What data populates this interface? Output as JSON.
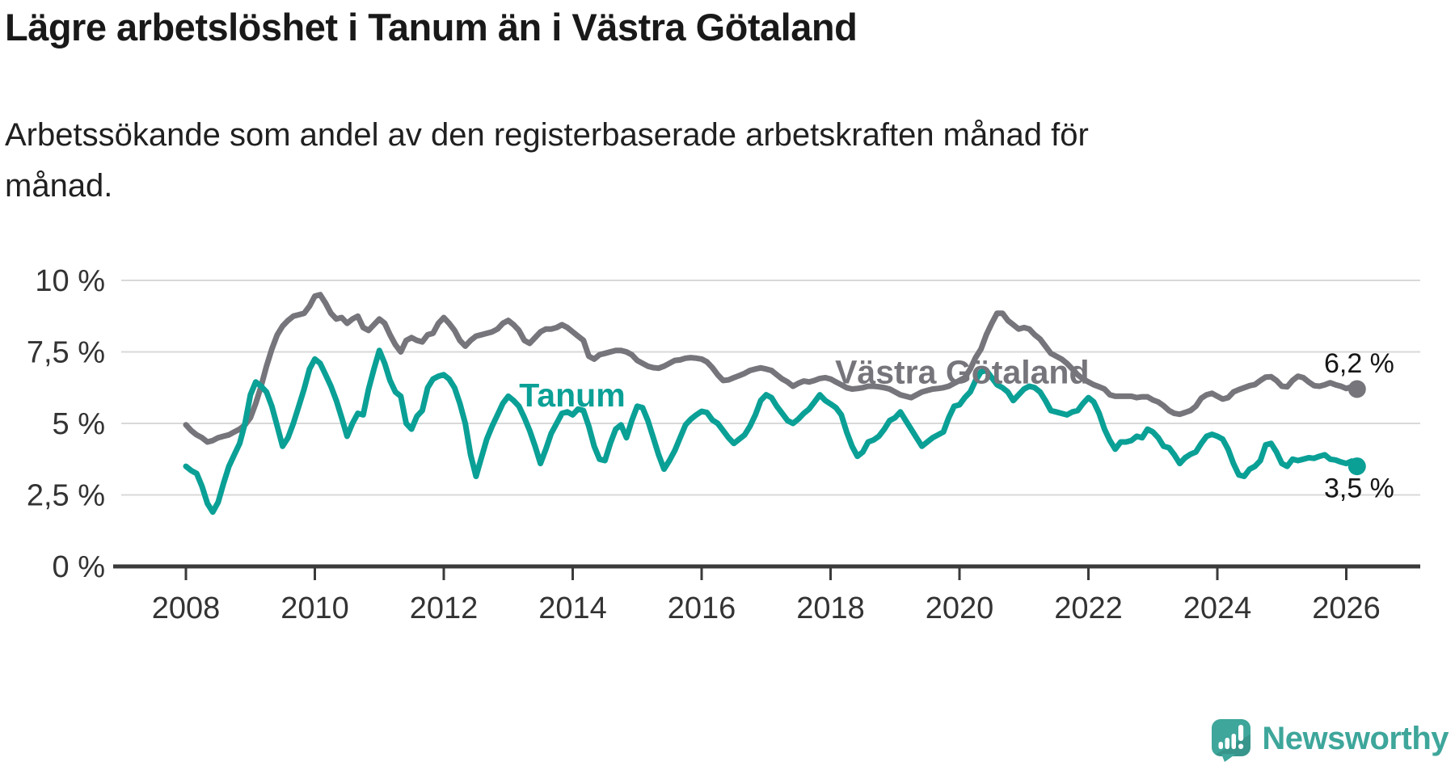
{
  "title": "Lägre arbetslöshet i Tanum än i Västra Götaland",
  "subtitle": "Arbetssökande som andel av den registerbaserade arbetskraften månad för\nmånad.",
  "branding": {
    "logo_text": "Newsworthy",
    "logo_color": "#3EA69B"
  },
  "chart_data": {
    "type": "line",
    "title": "Lägre arbetslöshet i Tanum än i Västra Götaland",
    "subtitle": "Arbetssökande som andel av den registerbaserade arbetskraften månad för månad.",
    "unit": "%",
    "grid": true,
    "legend_position": "inline-labels",
    "x_axis": {
      "tick_years": [
        2008,
        2010,
        2012,
        2014,
        2016,
        2018,
        2020,
        2022,
        2024,
        2026
      ],
      "tick_labels": [
        "2008",
        "2010",
        "2012",
        "2014",
        "2016",
        "2018",
        "2020",
        "2022",
        "2024",
        "2026"
      ],
      "range_years": [
        2007.5,
        2027.1
      ]
    },
    "y_axis": {
      "ticks": [
        {
          "value": 0,
          "label": "0 %"
        },
        {
          "value": 2.5,
          "label": "2,5 %"
        },
        {
          "value": 5,
          "label": "5 %"
        },
        {
          "value": 7.5,
          "label": "7,5 %"
        },
        {
          "value": 10,
          "label": "10 %"
        }
      ],
      "range": [
        0,
        10.5
      ]
    },
    "colors": {
      "axis": "#3A3A3A",
      "gridline": "#D9D9D9",
      "end_label_text": "#161616"
    },
    "series": [
      {
        "name": "Västra Götaland",
        "color": "#75757B",
        "start": "2008-01",
        "step_months": 1,
        "end_value_label": "6,2 %",
        "end_value": 6.2,
        "end_dot": true,
        "name_label_pos": {
          "year": 2018.07,
          "value": 6.4
        },
        "end_label_pos": {
          "year": 2026.2,
          "value": 6.78
        },
        "values": [
          4.95,
          4.75,
          4.6,
          4.5,
          4.35,
          4.4,
          4.5,
          4.55,
          4.6,
          4.7,
          4.8,
          4.95,
          5.2,
          5.7,
          6.3,
          7.0,
          7.6,
          8.1,
          8.4,
          8.6,
          8.75,
          8.8,
          8.85,
          9.1,
          9.45,
          9.5,
          9.2,
          8.85,
          8.65,
          8.7,
          8.5,
          8.65,
          8.75,
          8.35,
          8.25,
          8.45,
          8.65,
          8.5,
          8.1,
          7.75,
          7.5,
          7.9,
          8.0,
          7.9,
          7.85,
          8.1,
          8.15,
          8.5,
          8.7,
          8.5,
          8.25,
          7.9,
          7.7,
          7.9,
          8.05,
          8.1,
          8.15,
          8.2,
          8.3,
          8.5,
          8.6,
          8.45,
          8.25,
          7.9,
          7.8,
          8.0,
          8.2,
          8.3,
          8.3,
          8.35,
          8.45,
          8.35,
          8.2,
          8.05,
          7.9,
          7.35,
          7.25,
          7.4,
          7.45,
          7.5,
          7.55,
          7.55,
          7.5,
          7.4,
          7.2,
          7.1,
          7.0,
          6.95,
          6.93,
          7.0,
          7.1,
          7.2,
          7.22,
          7.28,
          7.3,
          7.28,
          7.25,
          7.15,
          6.95,
          6.7,
          6.5,
          6.52,
          6.6,
          6.67,
          6.75,
          6.85,
          6.9,
          6.94,
          6.9,
          6.85,
          6.7,
          6.55,
          6.45,
          6.3,
          6.4,
          6.48,
          6.45,
          6.5,
          6.57,
          6.6,
          6.55,
          6.45,
          6.35,
          6.25,
          6.2,
          6.22,
          6.25,
          6.3,
          6.3,
          6.28,
          6.25,
          6.2,
          6.1,
          6.0,
          5.95,
          5.9,
          6.0,
          6.1,
          6.15,
          6.2,
          6.22,
          6.25,
          6.3,
          6.4,
          6.5,
          6.6,
          6.9,
          7.3,
          7.6,
          8.1,
          8.5,
          8.85,
          8.85,
          8.6,
          8.45,
          8.3,
          8.35,
          8.3,
          8.1,
          7.95,
          7.7,
          7.45,
          7.35,
          7.25,
          7.1,
          6.9,
          6.7,
          6.55,
          6.45,
          6.35,
          6.28,
          6.2,
          6.0,
          5.95,
          5.95,
          5.95,
          5.95,
          5.9,
          5.93,
          5.93,
          5.82,
          5.75,
          5.62,
          5.45,
          5.35,
          5.32,
          5.38,
          5.45,
          5.6,
          5.88,
          6.0,
          6.05,
          5.95,
          5.85,
          5.9,
          6.1,
          6.18,
          6.25,
          6.32,
          6.36,
          6.5,
          6.62,
          6.63,
          6.5,
          6.3,
          6.28,
          6.5,
          6.65,
          6.6,
          6.45,
          6.32,
          6.3,
          6.35,
          6.42,
          6.35,
          6.3,
          6.22,
          6.28,
          6.2
        ]
      },
      {
        "name": "Tanum",
        "color": "#0AA096",
        "start": "2008-01",
        "step_months": 1,
        "end_value_label": "3,5 %",
        "end_value": 3.5,
        "end_dot": true,
        "name_label_pos": {
          "year": 2013.17,
          "value": 5.6
        },
        "end_label_pos": {
          "year": 2026.2,
          "value": 2.42
        },
        "values": [
          3.5,
          3.35,
          3.25,
          2.8,
          2.2,
          1.9,
          2.25,
          2.9,
          3.5,
          3.9,
          4.3,
          5.0,
          6.0,
          6.45,
          6.3,
          6.1,
          5.6,
          4.9,
          4.2,
          4.5,
          5.0,
          5.6,
          6.2,
          6.9,
          7.25,
          7.1,
          6.7,
          6.3,
          5.8,
          5.2,
          4.55,
          5.0,
          5.35,
          5.3,
          6.2,
          6.9,
          7.55,
          7.1,
          6.5,
          6.1,
          5.95,
          5.0,
          4.8,
          5.25,
          5.45,
          6.25,
          6.55,
          6.65,
          6.7,
          6.55,
          6.25,
          5.7,
          5.0,
          3.9,
          3.15,
          3.8,
          4.45,
          4.9,
          5.3,
          5.7,
          5.95,
          5.8,
          5.6,
          5.2,
          4.75,
          4.2,
          3.6,
          4.1,
          4.65,
          5.0,
          5.35,
          5.4,
          5.3,
          5.5,
          5.45,
          4.9,
          4.2,
          3.75,
          3.7,
          4.3,
          4.8,
          4.95,
          4.5,
          5.1,
          5.6,
          5.55,
          5.1,
          4.5,
          3.9,
          3.4,
          3.7,
          4.05,
          4.5,
          4.95,
          5.15,
          5.3,
          5.42,
          5.38,
          5.12,
          5.0,
          4.75,
          4.5,
          4.3,
          4.45,
          4.6,
          4.9,
          5.3,
          5.8,
          6.0,
          5.9,
          5.6,
          5.35,
          5.1,
          5.0,
          5.15,
          5.35,
          5.5,
          5.75,
          6.0,
          5.8,
          5.68,
          5.55,
          5.3,
          4.7,
          4.2,
          3.85,
          4.0,
          4.35,
          4.42,
          4.55,
          4.8,
          5.1,
          5.2,
          5.4,
          5.1,
          4.8,
          4.5,
          4.2,
          4.35,
          4.5,
          4.6,
          4.7,
          5.2,
          5.6,
          5.65,
          5.9,
          6.1,
          6.5,
          6.8,
          6.85,
          6.6,
          6.35,
          6.25,
          6.1,
          5.8,
          6.0,
          6.2,
          6.3,
          6.25,
          6.1,
          5.8,
          5.45,
          5.4,
          5.35,
          5.3,
          5.4,
          5.45,
          5.7,
          5.9,
          5.75,
          5.35,
          4.8,
          4.4,
          4.1,
          4.35,
          4.35,
          4.4,
          4.55,
          4.5,
          4.8,
          4.7,
          4.5,
          4.2,
          4.15,
          3.9,
          3.6,
          3.8,
          3.92,
          4.0,
          4.3,
          4.55,
          4.62,
          4.55,
          4.45,
          4.1,
          3.6,
          3.2,
          3.15,
          3.4,
          3.5,
          3.7,
          4.25,
          4.3,
          4.0,
          3.6,
          3.5,
          3.75,
          3.7,
          3.75,
          3.8,
          3.78,
          3.85,
          3.9,
          3.75,
          3.72,
          3.65,
          3.6,
          3.68,
          3.5
        ]
      }
    ]
  }
}
